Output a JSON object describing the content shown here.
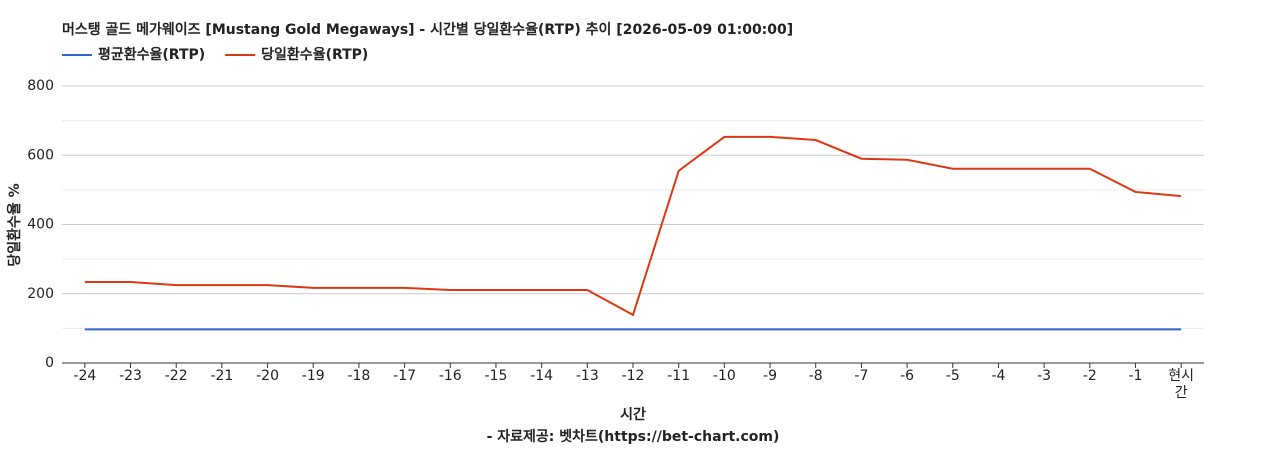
{
  "chart_data": {
    "type": "line",
    "title": "머스탱 골드 메가웨이즈 [Mustang Gold Megaways] - 시간별 당일환수율(RTP) 추이 [2026-05-09 01:00:00]",
    "x_label": "시간",
    "y_label": "당일환수율 %",
    "source": "- 자료제공: 벳차트(https://bet-chart.com)",
    "categories": [
      "-24",
      "-23",
      "-22",
      "-21",
      "-20",
      "-19",
      "-18",
      "-17",
      "-16",
      "-15",
      "-14",
      "-13",
      "-12",
      "-11",
      "-10",
      "-9",
      "-8",
      "-7",
      "-6",
      "-5",
      "-4",
      "-3",
      "-2",
      "-1",
      "현시간"
    ],
    "series": [
      {
        "name": "평균환수율(RTP)",
        "color": "#3366cc",
        "values": [
          97,
          97,
          97,
          97,
          97,
          97,
          97,
          97,
          97,
          97,
          97,
          97,
          97,
          97,
          97,
          97,
          97,
          97,
          97,
          97,
          97,
          97,
          97,
          97,
          97
        ]
      },
      {
        "name": "당일환수율(RTP)",
        "color": "#dc3912",
        "values": [
          234,
          234,
          225,
          225,
          225,
          217,
          217,
          217,
          211,
          211,
          211,
          211,
          139,
          555,
          653,
          653,
          644,
          590,
          587,
          561,
          561,
          561,
          561,
          494,
          482
        ]
      }
    ],
    "ylim": [
      0,
      800
    ],
    "yticks": [
      0,
      200,
      400,
      600,
      800
    ],
    "grid": true,
    "minor_grid": true
  }
}
